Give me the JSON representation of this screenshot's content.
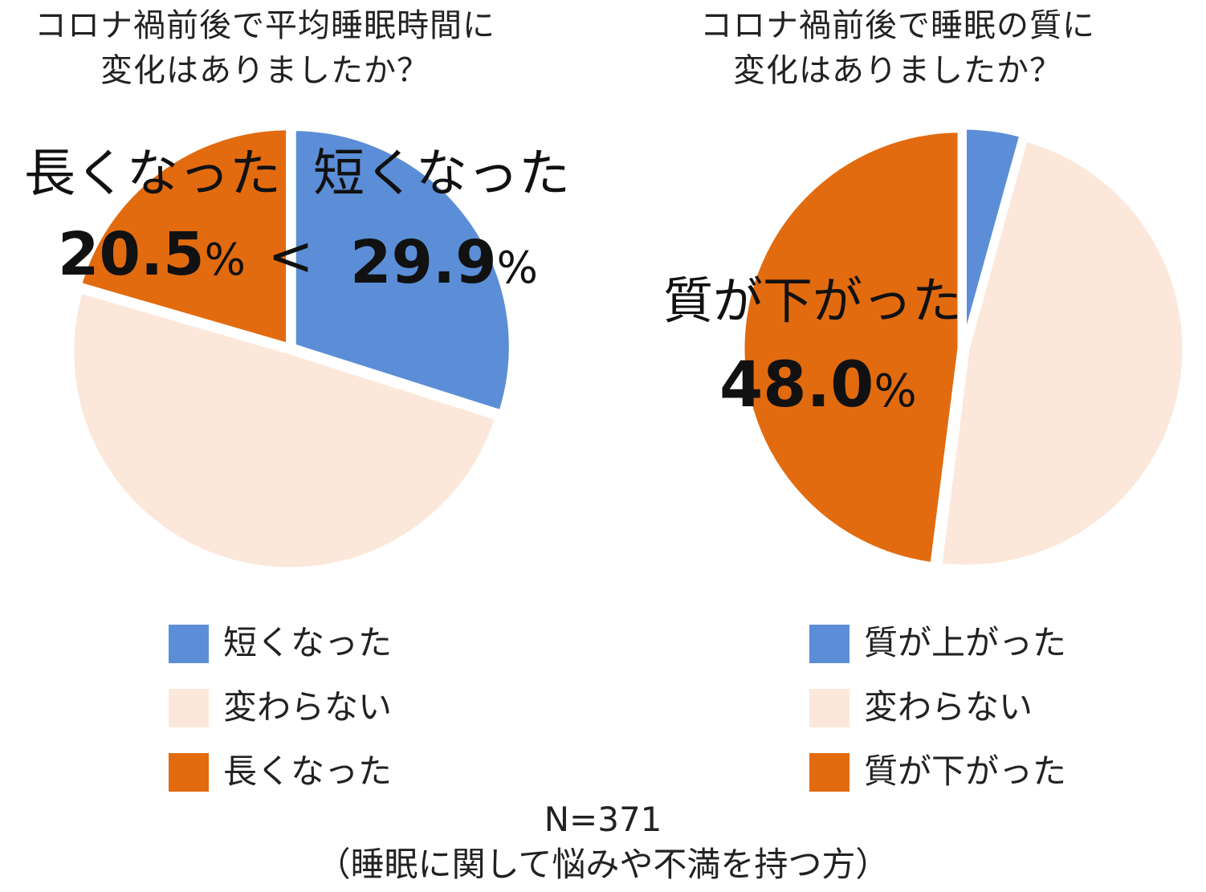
{
  "charts": {
    "left": {
      "title_line1": "コロナ禍前後で平均睡眠時間に",
      "title_line2": "変化はありましたか？",
      "callouts": {
        "longer_label": "長くなった",
        "longer_value": "20.5",
        "longer_unit": "%",
        "compare": "<",
        "shorter_label": "短くなった",
        "shorter_value": "29.9",
        "shorter_unit": "%"
      }
    },
    "right": {
      "title_line1": "コロナ禍前後で睡眠の質に",
      "title_line2": "変化はありましたか？",
      "callouts": {
        "lower_label": "質が下がった",
        "lower_value": "48.0",
        "lower_unit": "%"
      }
    }
  },
  "chart_data": [
    {
      "type": "pie",
      "title": "コロナ禍前後で平均睡眠時間に変化はありましたか？",
      "labels": [
        "短くなった",
        "変わらない",
        "長くなった"
      ],
      "values": [
        29.9,
        49.6,
        20.5
      ],
      "colors": [
        "#5B8ED6",
        "#FCE8DA",
        "#E26B0F"
      ],
      "legend": "bottom"
    },
    {
      "type": "pie",
      "title": "コロナ禍前後で睡眠の質に変化はありましたか？",
      "labels": [
        "質が上がった",
        "変わらない",
        "質が下がった"
      ],
      "values": [
        4.3,
        47.7,
        48.0
      ],
      "colors": [
        "#5B8ED6",
        "#FCE8DA",
        "#E26B0F"
      ],
      "legend": "bottom"
    }
  ],
  "footer": {
    "sample": "N=371",
    "population": "（睡眠に関して悩みや不満を持つ方）"
  }
}
